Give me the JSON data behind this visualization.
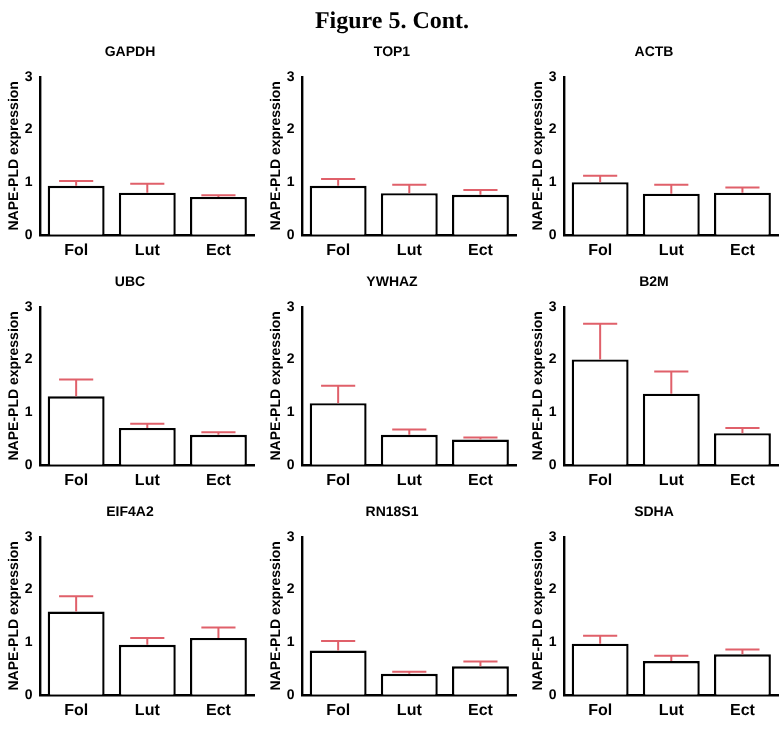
{
  "chart_data": [
    {
      "type": "bar",
      "title": "GAPDH",
      "ylabel": "NAPE-PLD expression",
      "categories": [
        "Fol",
        "Lut",
        "Ect"
      ],
      "values": [
        0.93,
        0.8,
        0.72
      ],
      "errors": [
        [
          0.93,
          1.02
        ],
        [
          0.8,
          0.97
        ],
        [
          0.72,
          0.75
        ]
      ],
      "color": "#ffffff",
      "ylim": [
        0,
        3
      ],
      "yticks": [
        0,
        1,
        2,
        3
      ],
      "annotations": [
        "Figure 5. Cont."
      ]
    },
    {
      "type": "bar",
      "title": "TOP1",
      "ylabel": "NAPE-PLD expression",
      "categories": [
        "Fol",
        "Lut",
        "Ect"
      ],
      "values": [
        0.93,
        0.79,
        0.76
      ],
      "errors": [
        [
          0.93,
          1.06
        ],
        [
          0.79,
          0.95
        ],
        [
          0.76,
          0.85
        ]
      ],
      "color": "#ffffff",
      "ylim": [
        0,
        3
      ],
      "yticks": [
        0,
        1,
        2,
        3
      ]
    },
    {
      "type": "bar",
      "title": "ACTB",
      "ylabel": "NAPE-PLD expression",
      "categories": [
        "Fol",
        "Lut",
        "Ect"
      ],
      "values": [
        1.0,
        0.78,
        0.8
      ],
      "errors": [
        [
          1.0,
          1.12
        ],
        [
          0.78,
          0.95
        ],
        [
          0.8,
          0.9
        ]
      ],
      "color": "#ffffff",
      "ylim": [
        0,
        3
      ],
      "yticks": [
        0,
        1,
        2,
        3
      ]
    },
    {
      "type": "bar",
      "title": "UBC",
      "ylabel": "NAPE-PLD expression",
      "categories": [
        "Fol",
        "Lut",
        "Ect"
      ],
      "values": [
        1.3,
        0.7,
        0.57
      ],
      "errors": [
        [
          1.3,
          1.62
        ],
        [
          0.7,
          0.78
        ],
        [
          0.57,
          0.62
        ]
      ],
      "color": "#ffffff",
      "ylim": [
        0,
        3
      ],
      "yticks": [
        0,
        1,
        2,
        3
      ]
    },
    {
      "type": "bar",
      "title": "YWHAZ",
      "ylabel": "NAPE-PLD expression",
      "categories": [
        "Fol",
        "Lut",
        "Ect"
      ],
      "values": [
        1.17,
        0.57,
        0.48
      ],
      "errors": [
        [
          1.17,
          1.5
        ],
        [
          0.57,
          0.67
        ],
        [
          0.48,
          0.52
        ]
      ],
      "color": "#ffffff",
      "ylim": [
        0,
        3
      ],
      "yticks": [
        0,
        1,
        2,
        3
      ]
    },
    {
      "type": "bar",
      "title": "B2M",
      "ylabel": "NAPE-PLD expression",
      "categories": [
        "Fol",
        "Lut",
        "Ect"
      ],
      "values": [
        2.0,
        1.35,
        0.6
      ],
      "errors": [
        [
          2.0,
          2.68
        ],
        [
          1.35,
          1.77
        ],
        [
          0.6,
          0.7
        ]
      ],
      "color": "#ffffff",
      "ylim": [
        0,
        3
      ],
      "yticks": [
        0,
        1,
        2,
        3
      ]
    },
    {
      "type": "bar",
      "title": "EIF4A2",
      "ylabel": "NAPE-PLD expression",
      "categories": [
        "Fol",
        "Lut",
        "Ect"
      ],
      "values": [
        1.58,
        0.95,
        1.08
      ],
      "errors": [
        [
          1.58,
          1.87
        ],
        [
          0.95,
          1.08
        ],
        [
          1.08,
          1.28
        ]
      ],
      "color": "#ffffff",
      "ylim": [
        0,
        3
      ],
      "yticks": [
        0,
        1,
        2,
        3
      ]
    },
    {
      "type": "bar",
      "title": "RN18S1",
      "ylabel": "NAPE-PLD expression",
      "categories": [
        "Fol",
        "Lut",
        "Ect"
      ],
      "values": [
        0.84,
        0.4,
        0.54
      ],
      "errors": [
        [
          0.84,
          1.02
        ],
        [
          0.4,
          0.44
        ],
        [
          0.54,
          0.63
        ]
      ],
      "color": "#ffffff",
      "ylim": [
        0,
        3
      ],
      "yticks": [
        0,
        1,
        2,
        3
      ]
    },
    {
      "type": "bar",
      "title": "SDHA",
      "ylabel": "NAPE-PLD expression",
      "categories": [
        "Fol",
        "Lut",
        "Ect"
      ],
      "values": [
        0.97,
        0.64,
        0.77
      ],
      "errors": [
        [
          0.97,
          1.12
        ],
        [
          0.64,
          0.74
        ],
        [
          0.77,
          0.86
        ]
      ],
      "color": "#ffffff",
      "ylim": [
        0,
        3
      ],
      "yticks": [
        0,
        1,
        2,
        3
      ]
    }
  ]
}
